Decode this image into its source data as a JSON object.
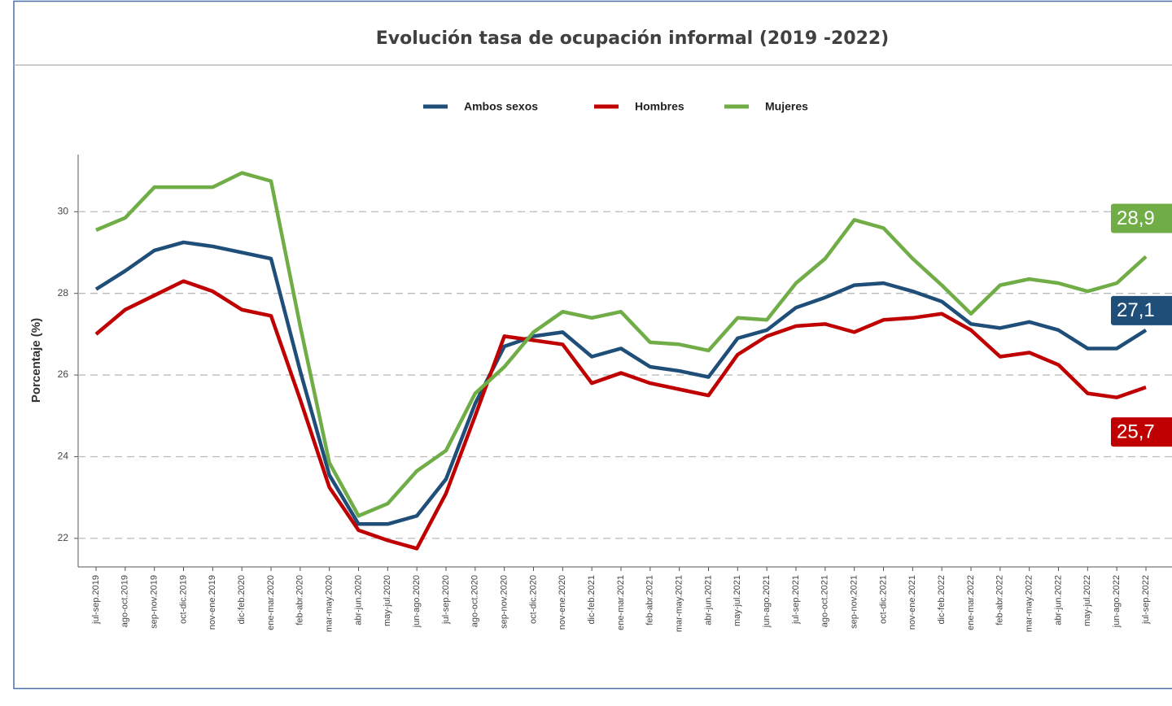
{
  "chart_data": {
    "type": "line",
    "title": "Evolución tasa de ocupación informal (2019 -2022)",
    "ylabel": "Porcentaje (%)",
    "categories": [
      "jul-sep.2019",
      "ago-oct.2019",
      "sep-nov.2019",
      "oct-dic.2019",
      "nov-ene.2019",
      "dic-feb.2020",
      "ene-mar.2020",
      "feb-abr.2020",
      "mar-may.2020",
      "abr-jun.2020",
      "may-jul.2020",
      "jun-ago.2020",
      "jul-sep.2020",
      "ago-oct.2020",
      "sep-nov.2020",
      "oct-dic.2020",
      "nov-ene.2020",
      "dic-feb.2021",
      "ene-mar.2021",
      "feb-abr.2021",
      "mar-may.2021",
      "abr-jun.2021",
      "may-jul.2021",
      "jun-ago.2021",
      "jul-sep.2021",
      "ago-oct.2021",
      "sep-nov.2021",
      "oct-dic.2021",
      "nov-ene.2021",
      "dic-feb.2022",
      "ene-mar.2022",
      "feb-abr.2022",
      "mar-may.2022",
      "abr-jun.2022",
      "may-jul.2022",
      "jun-ago.2022",
      "jul-sep.2022"
    ],
    "series": [
      {
        "name": "Ambos sexos",
        "color": "#1f4e79",
        "values": [
          28.1,
          28.55,
          29.05,
          29.25,
          29.15,
          29.0,
          28.85,
          26.1,
          23.55,
          22.35,
          22.35,
          22.55,
          23.45,
          25.3,
          26.7,
          26.95,
          27.05,
          26.45,
          26.65,
          26.2,
          26.1,
          25.95,
          26.9,
          27.1,
          27.65,
          27.9,
          28.2,
          28.25,
          28.05,
          27.8,
          27.25,
          27.15,
          27.3,
          27.1,
          26.65,
          26.65,
          27.1
        ],
        "value_labels": [
          null,
          null,
          null,
          null,
          null,
          null,
          null,
          null,
          null,
          null,
          null,
          null,
          null,
          null,
          null,
          null,
          null,
          null,
          null,
          null,
          null,
          null,
          null,
          null,
          null,
          null,
          null,
          null,
          null,
          null,
          null,
          null,
          null,
          null,
          null,
          null,
          "27,1"
        ]
      },
      {
        "name": "Hombres",
        "color": "#c00000",
        "values": [
          27.0,
          27.6,
          27.95,
          28.3,
          28.05,
          27.6,
          27.45,
          25.4,
          23.25,
          22.2,
          21.95,
          21.75,
          23.1,
          25.0,
          26.95,
          26.85,
          26.75,
          25.8,
          26.05,
          25.8,
          25.65,
          25.5,
          26.5,
          26.95,
          27.2,
          27.25,
          27.05,
          27.35,
          27.4,
          27.5,
          27.1,
          26.45,
          26.55,
          26.25,
          25.55,
          25.45,
          25.7
        ],
        "value_labels": [
          null,
          null,
          null,
          null,
          null,
          null,
          null,
          null,
          null,
          null,
          null,
          null,
          null,
          null,
          null,
          null,
          null,
          null,
          null,
          null,
          null,
          null,
          null,
          null,
          null,
          null,
          null,
          null,
          null,
          null,
          null,
          null,
          null,
          null,
          null,
          null,
          "25,7"
        ]
      },
      {
        "name": "Mujeres",
        "color": "#70ad47",
        "values": [
          29.55,
          29.85,
          30.6,
          30.6,
          30.6,
          30.95,
          30.75,
          27.2,
          23.85,
          22.55,
          22.85,
          23.65,
          24.15,
          25.55,
          26.2,
          27.05,
          27.55,
          27.4,
          27.55,
          26.8,
          26.75,
          26.6,
          27.4,
          27.35,
          28.25,
          28.85,
          29.8,
          29.6,
          28.85,
          28.2,
          27.5,
          28.2,
          28.35,
          28.25,
          28.05,
          28.25,
          28.9
        ],
        "value_labels": [
          null,
          null,
          null,
          null,
          null,
          null,
          null,
          null,
          null,
          null,
          null,
          null,
          null,
          null,
          null,
          null,
          null,
          null,
          null,
          null,
          null,
          null,
          null,
          null,
          null,
          null,
          null,
          null,
          null,
          null,
          null,
          null,
          null,
          null,
          null,
          null,
          "28,9"
        ]
      }
    ],
    "ylim": [
      21.3,
      31.4
    ],
    "yticks": [
      22,
      24,
      26,
      28,
      30
    ],
    "grid": true,
    "legend": "top"
  }
}
